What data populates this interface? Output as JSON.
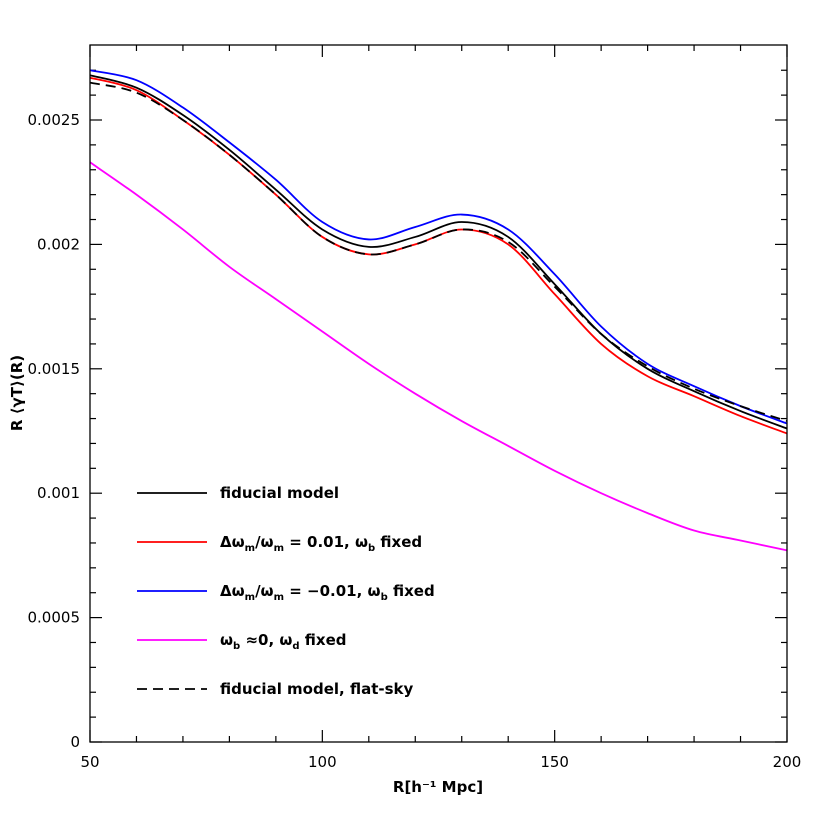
{
  "chart_data": {
    "type": "line",
    "title": "",
    "xlabel": "R[h⁻¹ Mpc]",
    "ylabel": "R ⟨γT⟩(R)",
    "xlim": [
      50,
      200
    ],
    "ylim": [
      0,
      0.0028
    ],
    "x_ticks": [
      "50",
      "100",
      "150",
      "200"
    ],
    "y_ticks": [
      "0",
      "0.0005",
      "0.001",
      "0.0015",
      "0.002",
      "0.0025"
    ],
    "grid": false,
    "legend_position": "bottom-left",
    "x": [
      50,
      60,
      70,
      80,
      90,
      100,
      110,
      120,
      130,
      140,
      150,
      160,
      170,
      180,
      190,
      200
    ],
    "series": [
      {
        "name": "fiducial model",
        "color": "#000000",
        "dash": false,
        "values": [
          0.00268,
          0.00263,
          0.00252,
          0.00238,
          0.00222,
          0.00206,
          0.00199,
          0.00203,
          0.00209,
          0.00203,
          0.00184,
          0.00164,
          0.0015,
          0.00141,
          0.00133,
          0.00126
        ]
      },
      {
        "name": "Δωm/ωm = 0.01, ωb fixed",
        "color": "#ff0000",
        "dash": false,
        "values": [
          0.00267,
          0.00262,
          0.0025,
          0.00236,
          0.0022,
          0.00203,
          0.00196,
          0.002,
          0.00206,
          0.002,
          0.0018,
          0.0016,
          0.00147,
          0.00139,
          0.00131,
          0.00124
        ]
      },
      {
        "name": "Δωm/ωm = -0.01, ωb fixed",
        "color": "#0000ff",
        "dash": false,
        "values": [
          0.0027,
          0.00266,
          0.00255,
          0.00241,
          0.00226,
          0.00209,
          0.00202,
          0.00207,
          0.00212,
          0.00206,
          0.00188,
          0.00167,
          0.00152,
          0.00143,
          0.00135,
          0.00128
        ]
      },
      {
        "name": "ωb ≈0, ωd fixed",
        "color": "#ff00ff",
        "dash": false,
        "values": [
          0.00233,
          0.0022,
          0.00206,
          0.00191,
          0.00178,
          0.00165,
          0.00152,
          0.0014,
          0.00129,
          0.00119,
          0.00109,
          0.001,
          0.00092,
          0.00085,
          0.00081,
          0.00077
        ]
      },
      {
        "name": "fiducial model, flat-sky",
        "color": "#000000",
        "dash": true,
        "values": [
          0.00265,
          0.00261,
          0.0025,
          0.00236,
          0.0022,
          0.00203,
          0.00196,
          0.002,
          0.00206,
          0.00201,
          0.00183,
          0.00164,
          0.00151,
          0.00142,
          0.00135,
          0.00129
        ]
      }
    ],
    "legend": [
      {
        "parts": [
          [
            "fiducial model",
            ""
          ]
        ]
      },
      {
        "parts": [
          [
            "Δω",
            ""
          ],
          [
            "m",
            "sub"
          ],
          [
            "/ω",
            ""
          ],
          [
            "m",
            "sub"
          ],
          [
            " = 0.01, ω",
            ""
          ],
          [
            "b",
            "sub"
          ],
          [
            " fixed",
            ""
          ]
        ]
      },
      {
        "parts": [
          [
            "Δω",
            ""
          ],
          [
            "m",
            "sub"
          ],
          [
            "/ω",
            ""
          ],
          [
            "m",
            "sub"
          ],
          [
            " = −0.01, ω",
            ""
          ],
          [
            "b",
            "sub"
          ],
          [
            " fixed",
            ""
          ]
        ]
      },
      {
        "parts": [
          [
            "ω",
            ""
          ],
          [
            "b",
            "sub"
          ],
          [
            " ≈0, ω",
            ""
          ],
          [
            "d",
            "sub"
          ],
          [
            " fixed",
            ""
          ]
        ]
      },
      {
        "parts": [
          [
            "fiducial model, flat-sky",
            ""
          ]
        ]
      }
    ]
  }
}
